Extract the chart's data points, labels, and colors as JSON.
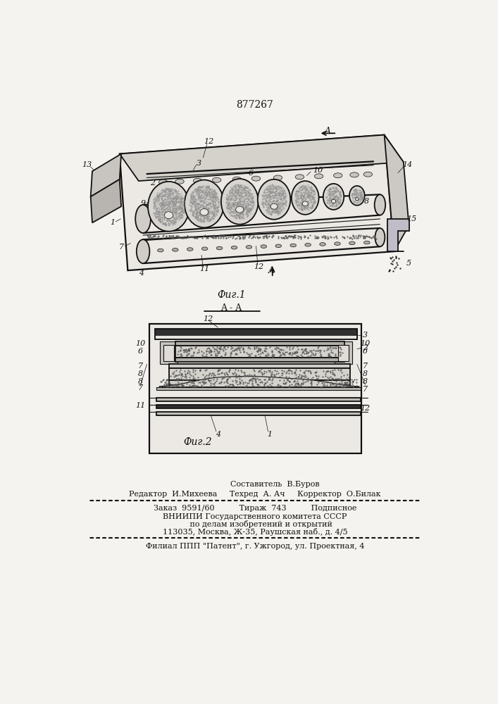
{
  "patent_number": "877267",
  "fig1_label": "Фиг.1",
  "fig2_label": "Фиг.2",
  "section_label": "A - A",
  "bg_color": "#f5f3ef",
  "line_color": "#111111",
  "footer_line1": "Составитель  В.Буров",
  "footer_line2": "Редактор  И.Михеева     Техред  А. Ач     Корректор  О.Билак",
  "footer_line3": "Заказ  9591/60          Тираж  743          Подписное",
  "footer_line4": "ВНИИПИ Государственного комитета СССР",
  "footer_line5": "     по делам изобретений и открытий",
  "footer_line6": "113035, Москва, Ж-35, Раушская наб., д. 4/5",
  "footer_line7": "Филиал ППП \"Патент\", г. Ужгород, ул. Проектная, 4"
}
